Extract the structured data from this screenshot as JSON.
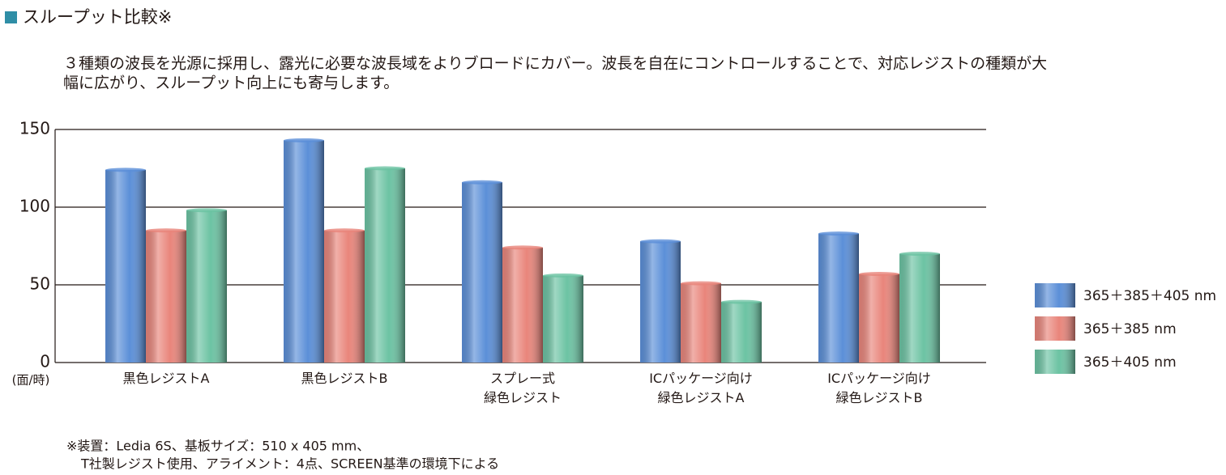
{
  "chart_data": {
    "type": "bar",
    "title": "スループット比較※",
    "description": [
      "３種類の波長を光源に採用し、露光に必要な波長域をよりブロードにカバー。波長を自在にコントロールすることで、対応レジストの種類が大",
      "幅に広がり、スループット向上にも寄与します。"
    ],
    "y_unit": "(面/時)",
    "categories": [
      [
        "黒色レジストA"
      ],
      [
        "黒色レジストB"
      ],
      [
        "スプレー式",
        "緑色レジスト"
      ],
      [
        "ICパッケージ向け",
        "緑色レジストA"
      ],
      [
        "ICパッケージ向け",
        "緑色レジストB"
      ]
    ],
    "series": [
      {
        "name": "365＋385＋405 nm",
        "color": "#5b8fd8",
        "values": [
          124,
          143,
          116,
          78,
          83
        ]
      },
      {
        "name": "365＋385 nm",
        "color": "#e9857b",
        "values": [
          85,
          85,
          74,
          51,
          57
        ]
      },
      {
        "name": "365＋405 nm",
        "color": "#6cc3a3",
        "values": [
          98,
          125,
          56,
          39,
          70
        ]
      }
    ],
    "ylim": [
      0,
      150
    ],
    "yticks": [
      0,
      50,
      100,
      150
    ],
    "grid": true,
    "notes": [
      "※装置：Ledia 6S、基板サイズ：510 x 405 mm、",
      "T社製レジスト使用、アライメント：4点、SCREEN基準の環境下による"
    ]
  }
}
